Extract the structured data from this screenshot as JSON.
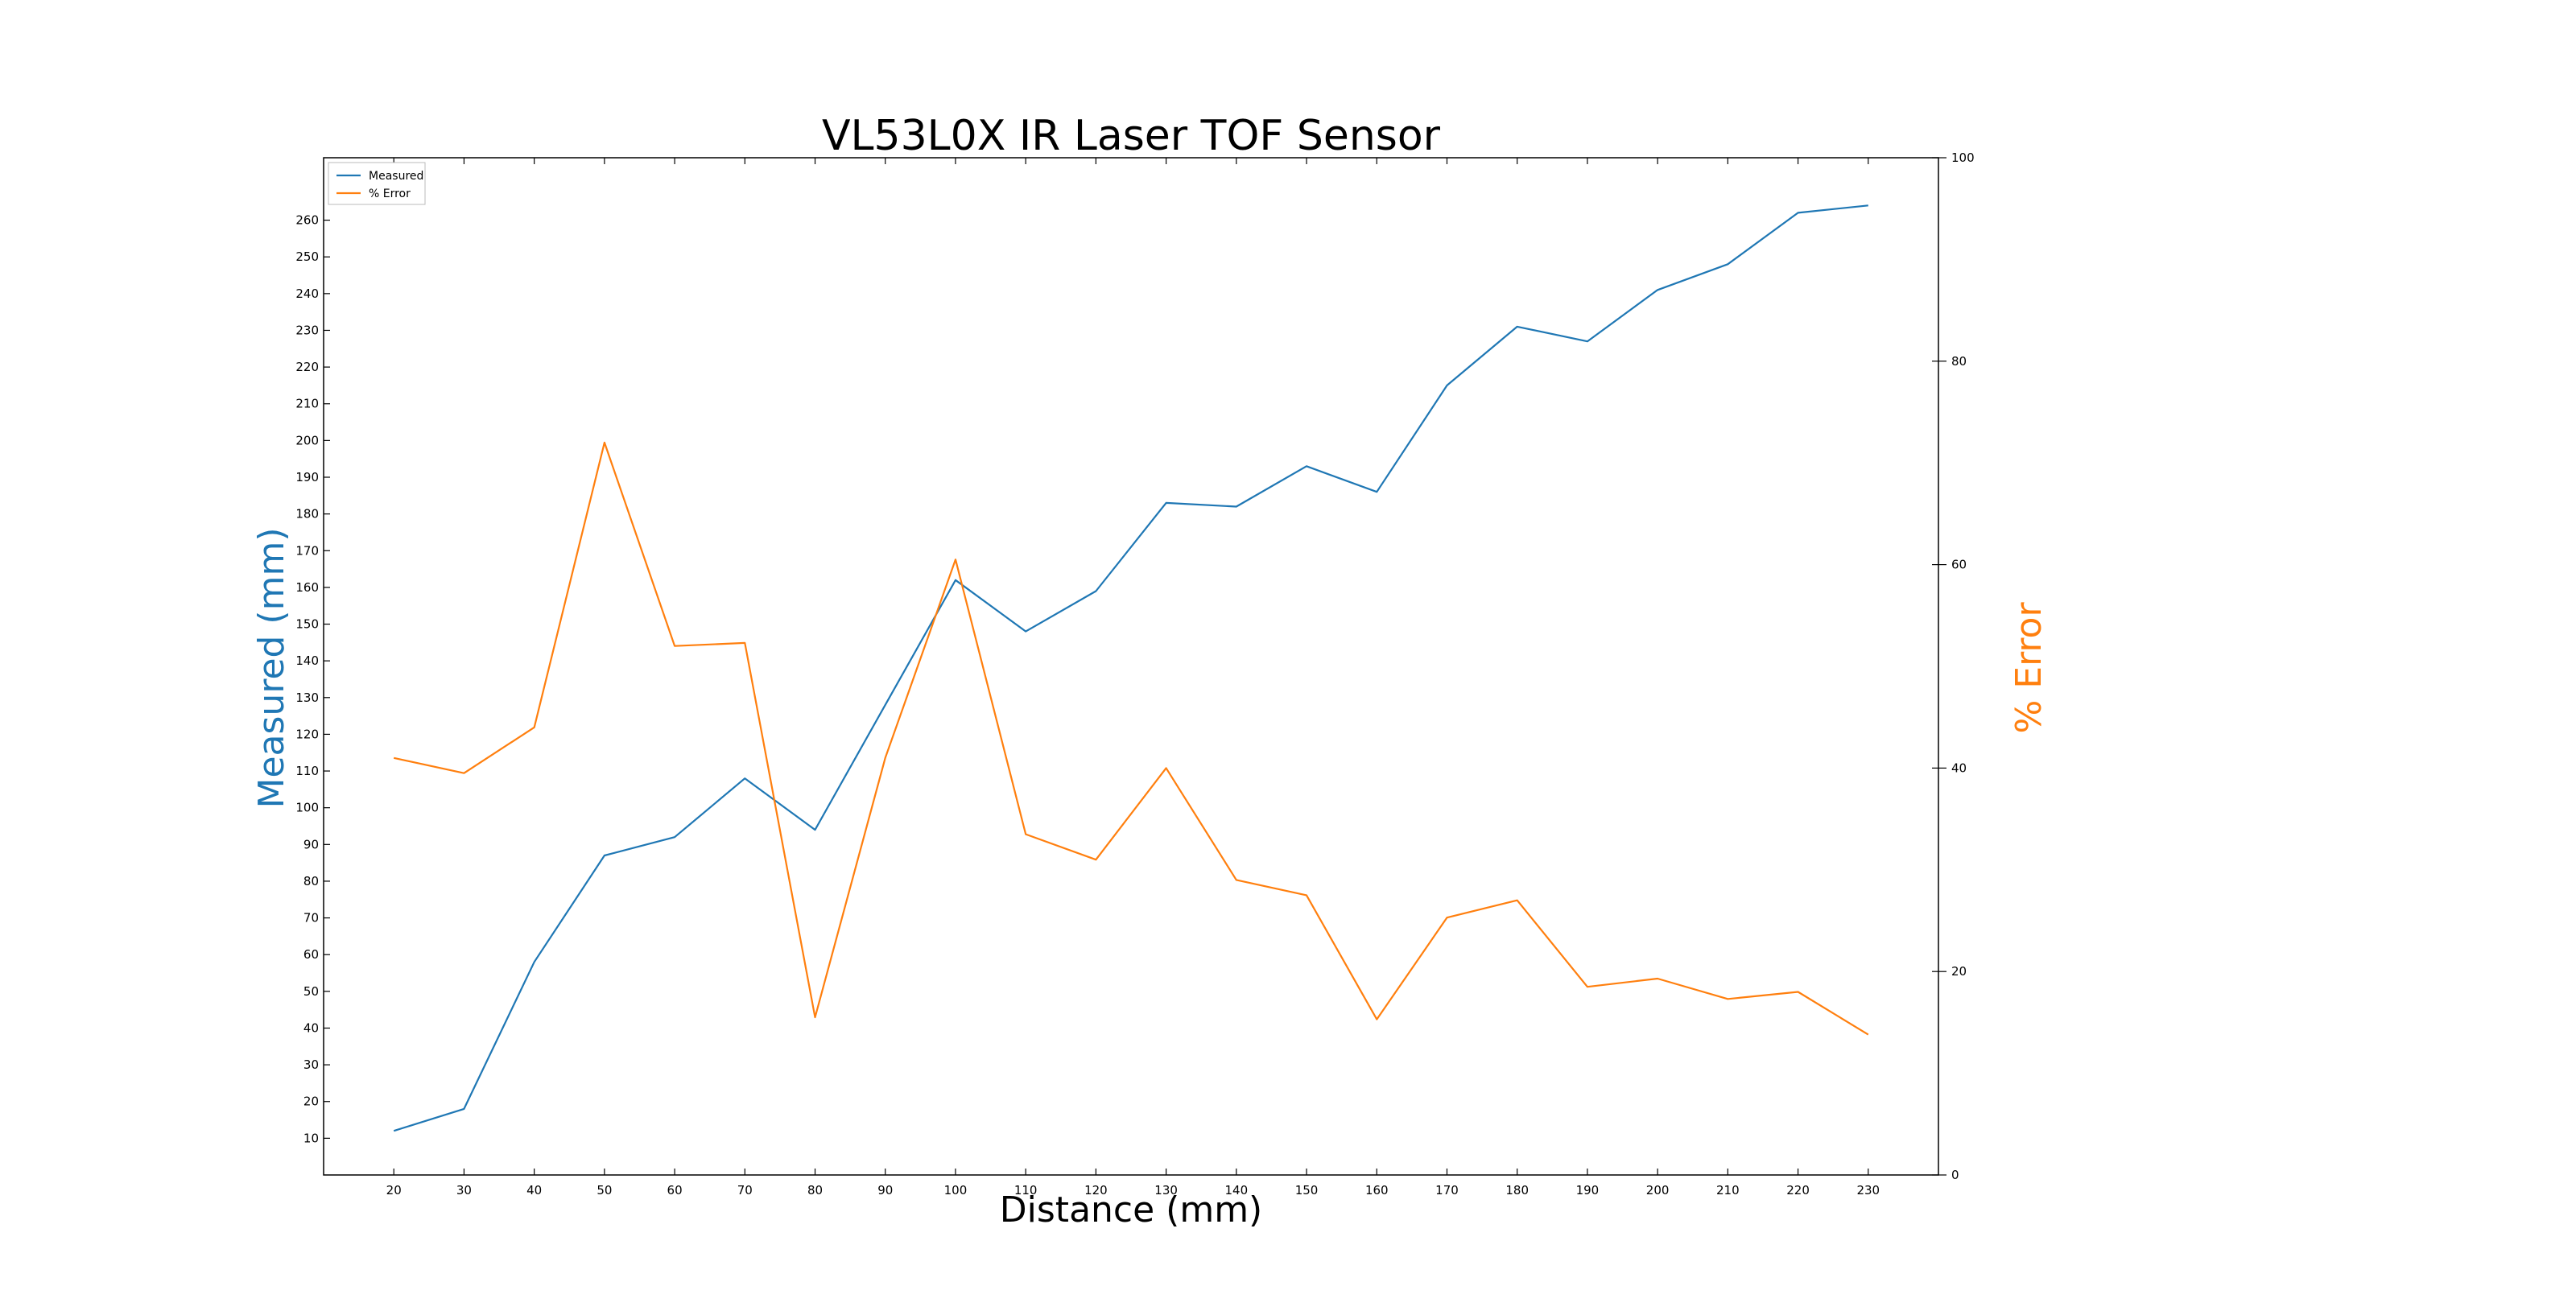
{
  "chart_data": {
    "type": "line",
    "title": "VL53L0X IR Laser TOF Sensor",
    "xlabel": "Distance (mm)",
    "ylabel": "Measured (mm)",
    "y2label": "% Error",
    "x": [
      20,
      30,
      40,
      50,
      60,
      70,
      80,
      90,
      100,
      110,
      120,
      130,
      140,
      150,
      160,
      170,
      180,
      190,
      200,
      210,
      220,
      230
    ],
    "xlim": [
      10,
      240
    ],
    "xticks": [
      20,
      30,
      40,
      50,
      60,
      70,
      80,
      90,
      100,
      110,
      120,
      130,
      140,
      150,
      160,
      170,
      180,
      190,
      200,
      210,
      220,
      230
    ],
    "ylim": [
      0,
      277
    ],
    "yticks": [
      10,
      20,
      30,
      40,
      50,
      60,
      70,
      80,
      90,
      100,
      110,
      120,
      130,
      140,
      150,
      160,
      170,
      180,
      190,
      200,
      210,
      220,
      230,
      240,
      250,
      260
    ],
    "y2lim": [
      0,
      100
    ],
    "y2ticks": [
      0,
      20,
      40,
      60,
      80,
      100
    ],
    "series": [
      {
        "name": "Measured",
        "axis": "left",
        "color": "#1f77b4",
        "values": [
          12,
          18,
          58,
          87,
          92,
          108,
          94,
          128,
          162,
          148,
          159,
          183,
          182,
          193,
          186,
          215,
          231,
          227,
          241,
          248,
          262,
          264
        ]
      },
      {
        "name": "% Error",
        "axis": "right",
        "color": "#ff7f0e",
        "values": [
          41,
          39.5,
          44,
          72,
          52,
          52.3,
          15.5,
          41,
          60.5,
          33.5,
          31,
          40,
          29,
          27.5,
          15.3,
          25.3,
          27,
          18.5,
          19.3,
          17.3,
          18,
          13.8
        ]
      }
    ],
    "legend_position": "top-left",
    "grid": false,
    "colors": {
      "ylabel": "#1f77b4",
      "y2label": "#ff7f0e"
    }
  }
}
